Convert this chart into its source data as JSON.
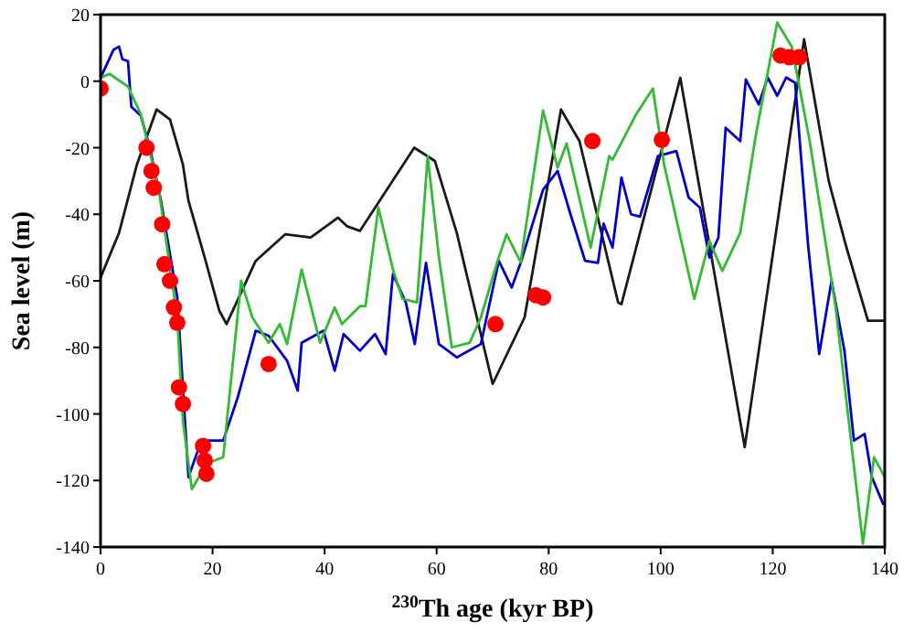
{
  "chart_data": {
    "type": "line",
    "xlabel": "$^{230}$Th age (kyr BP)",
    "ylabel": "Sea level (m)",
    "xlim": [
      0,
      140
    ],
    "ylim": [
      -140,
      20
    ],
    "xticks": [
      0,
      20,
      40,
      60,
      80,
      100,
      120,
      140
    ],
    "yticks": [
      -140,
      -120,
      -100,
      -80,
      -60,
      -40,
      -20,
      0,
      20
    ],
    "grid": false,
    "marker": "none",
    "line_style": "solid",
    "series": [
      {
        "color": "#1a1a1a",
        "x": [
          0,
          3.3,
          6.5,
          10,
          12.4,
          14.7,
          15.7,
          18.6,
          21.2,
          22.5,
          27.7,
          33,
          37.5,
          42.4,
          44,
          46.3,
          56,
          59.7,
          63.6,
          70,
          75.7,
          82.2,
          85.5,
          92.4,
          93,
          103.5,
          115,
          125.6,
          130,
          133,
          137,
          140
        ],
        "values": [
          -59,
          -45.6,
          -25,
          -8.5,
          -11.5,
          -25,
          -36,
          -53,
          -69,
          -73,
          -54,
          -46,
          -47,
          -41,
          -43.6,
          -45,
          -20,
          -24,
          -45.6,
          -91,
          -71,
          -8.5,
          -18,
          -66.5,
          -67,
          1,
          -110,
          12.6,
          -30,
          -49,
          -72,
          -72
        ]
      },
      {
        "color": "#0000cc",
        "x": [
          0,
          2.3,
          3.3,
          3.9,
          4.9,
          5.5,
          7.2,
          8.8,
          10.8,
          13.7,
          15.7,
          18,
          21.9,
          24.5,
          27.7,
          30,
          33.3,
          35.2,
          35.9,
          39.8,
          41.8,
          43.4,
          46.3,
          49,
          50.9,
          52.2,
          54.5,
          56.1,
          58.1,
          60.4,
          63.6,
          67.9,
          71.1,
          73.4,
          75,
          79,
          81.6,
          83.9,
          86.5,
          88.8,
          89.8,
          91.4,
          93,
          94.7,
          96.3,
          99.5,
          102.8,
          105,
          107,
          108.7,
          110.3,
          111.6,
          114.2,
          115.2,
          117.5,
          119.1,
          120.8,
          122.4,
          124,
          126.3,
          128.3,
          130.5,
          132.8,
          134.5,
          136.4,
          137.7,
          139.7
        ],
        "values": [
          1,
          9.4,
          10.4,
          6.6,
          6,
          -7.7,
          -10.4,
          -20,
          -36,
          -65,
          -119,
          -108,
          -108,
          -95,
          -75,
          -76.5,
          -84,
          -93,
          -78.6,
          -75,
          -87,
          -76,
          -81,
          -76,
          -82,
          -58,
          -66.5,
          -79,
          -54.6,
          -79,
          -83,
          -79,
          -54,
          -62,
          -54.6,
          -32.6,
          -27,
          -40,
          -54,
          -54.6,
          -42.8,
          -50,
          -29,
          -40,
          -40.7,
          -22.5,
          -21,
          -35,
          -38,
          -53,
          -47,
          -14,
          -18,
          0.5,
          -7,
          1.1,
          -4.4,
          1.1,
          -0.5,
          -49,
          -82,
          -60,
          -81,
          -108,
          -106,
          -119,
          -127
        ]
      },
      {
        "color": "#33bb33",
        "x": [
          0,
          1.6,
          4.9,
          7.2,
          10.4,
          13.7,
          14.7,
          16.3,
          18.9,
          21.9,
          25.1,
          27.1,
          30,
          32,
          33.3,
          35.9,
          39.2,
          41.8,
          43.1,
          46.3,
          47.3,
          49.6,
          52.2,
          53.9,
          56.5,
          58.4,
          60.4,
          62.7,
          65.9,
          67.9,
          70.8,
          72.5,
          75,
          79,
          81.6,
          83.2,
          87.5,
          90.8,
          91.4,
          95.6,
          98.6,
          100.6,
          106,
          108.7,
          111,
          114.2,
          117,
          120.8,
          123.4,
          126.6,
          131.2,
          136.1,
          138.1,
          140
        ],
        "values": [
          1,
          2.2,
          -1.6,
          -10,
          -32.6,
          -71,
          -102,
          -122.6,
          -115,
          -113,
          -60,
          -71,
          -78.6,
          -73,
          -79,
          -56.6,
          -78.6,
          -68,
          -73,
          -67.6,
          -67.6,
          -38,
          -56.6,
          -65.4,
          -66.5,
          -22.5,
          -52.8,
          -80,
          -78.6,
          -71,
          -54.4,
          -46,
          -54.4,
          -8.8,
          -26,
          -18.7,
          -50,
          -22.5,
          -23.6,
          -10,
          -2.2,
          -25,
          -65.4,
          -48,
          -57,
          -45.6,
          -16,
          17.6,
          10.4,
          -18,
          -67.6,
          -139,
          -113,
          -119
        ]
      },
      {
        "type": "scatter",
        "marker": "circle",
        "color": "#ff0000",
        "x": [
          0,
          8.2,
          9.1,
          9.5,
          11,
          11.4,
          12.4,
          13.1,
          13.7,
          14,
          14.7,
          18.3,
          18.6,
          18.9,
          30,
          70.5,
          77.7,
          79,
          87.8,
          100.2,
          121.4,
          123,
          124.7
        ],
        "values": [
          -2.2,
          -20,
          -27,
          -32,
          -43,
          -55,
          -60,
          -68,
          -72.6,
          -92,
          -97,
          -109.6,
          -114,
          -118,
          -85,
          -73,
          -64.3,
          -65,
          -18,
          -17.6,
          7.7,
          7.2,
          7.2
        ]
      }
    ]
  }
}
